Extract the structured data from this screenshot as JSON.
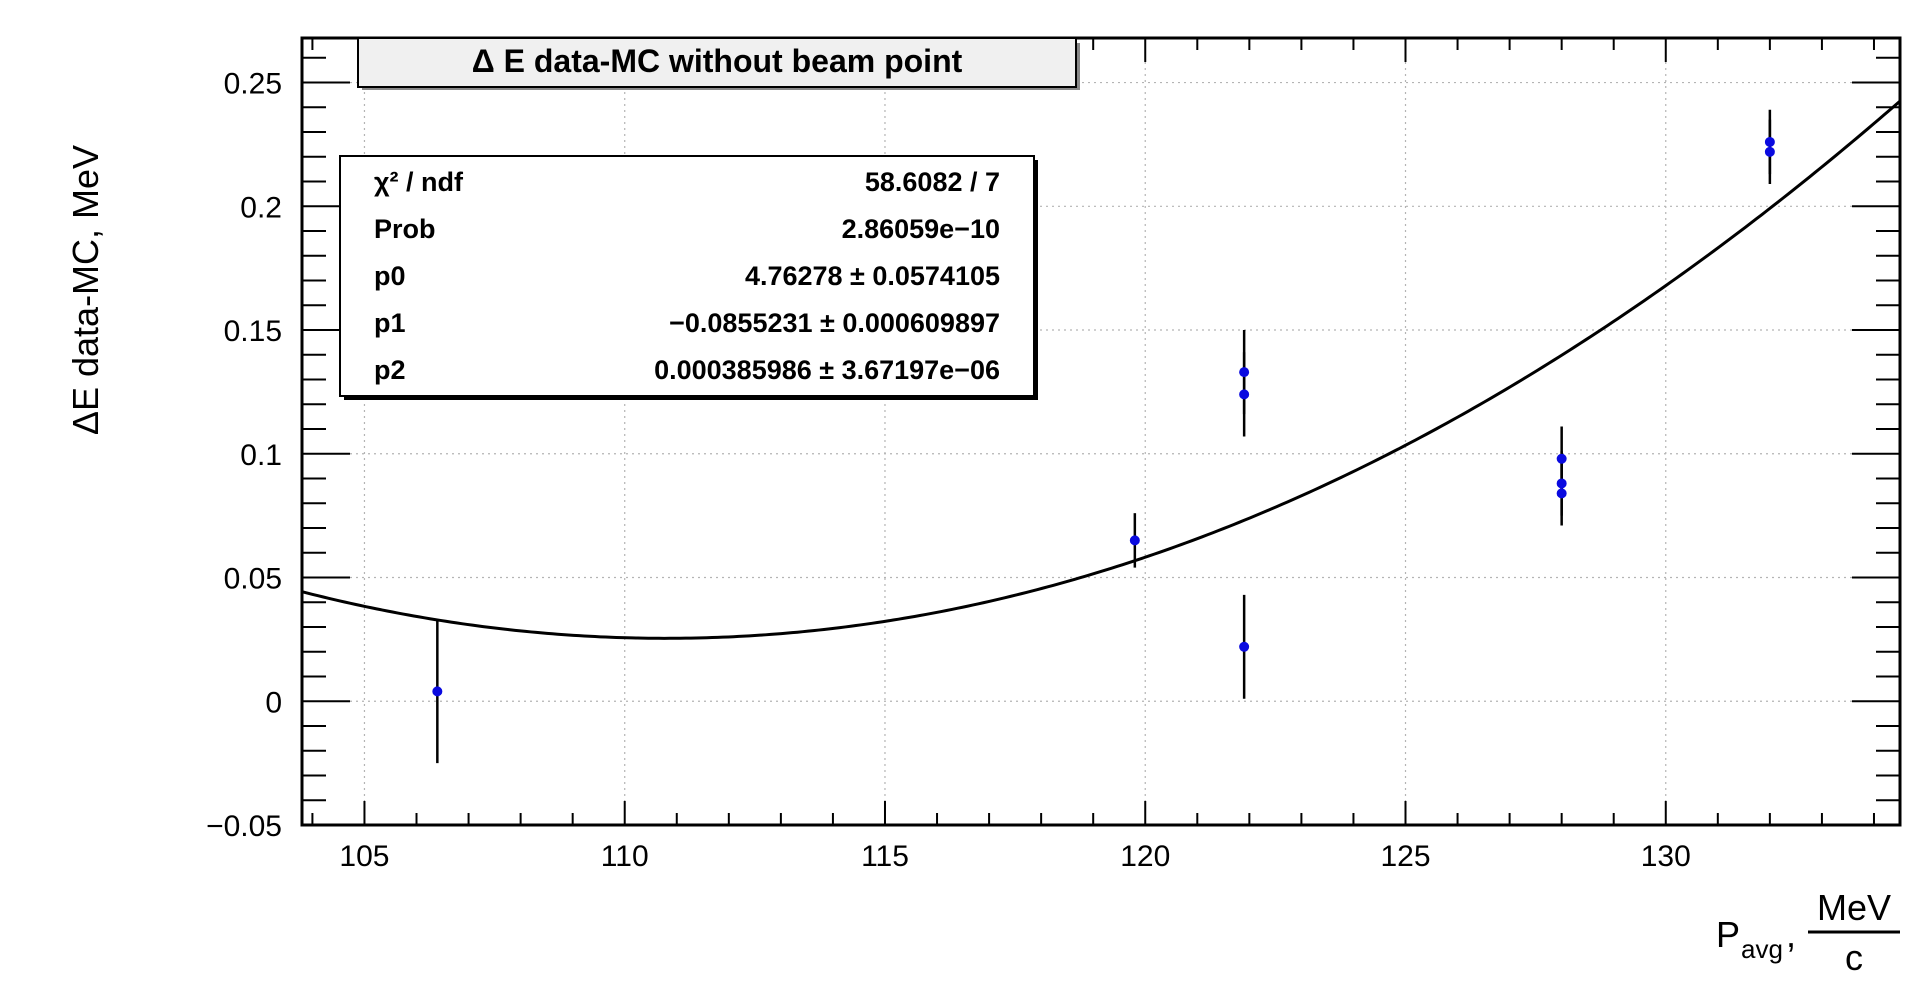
{
  "chart_data": {
    "type": "scatter",
    "title": "Δ E data-MC without beam point",
    "ylabel": "ΔE data-MC, MeV",
    "xlabel": {
      "main": "P",
      "subscript": "avg",
      "separator": ",",
      "unit_numerator": "MeV",
      "unit_denominator": "c"
    },
    "xlim": [
      103.8,
      134.5
    ],
    "ylim": [
      -0.05,
      0.268
    ],
    "grid": true,
    "x_ticks": [
      105,
      110,
      115,
      120,
      125,
      130
    ],
    "x_tick_labels": [
      "105",
      "110",
      "115",
      "120",
      "125",
      "130"
    ],
    "y_ticks": [
      -0.05,
      0,
      0.05,
      0.1,
      0.15,
      0.2,
      0.25
    ],
    "y_tick_labels": [
      "−0.05",
      "0",
      "0.05",
      "0.1",
      "0.15",
      "0.2",
      "0.25"
    ],
    "points": [
      {
        "x": 106.4,
        "y": 0.004,
        "err": 0.029
      },
      {
        "x": 119.8,
        "y": 0.065,
        "err": 0.011
      },
      {
        "x": 121.9,
        "y": 0.133,
        "err": 0.017
      },
      {
        "x": 121.9,
        "y": 0.124,
        "err": 0.017
      },
      {
        "x": 121.9,
        "y": 0.022,
        "err": 0.021
      },
      {
        "x": 128.0,
        "y": 0.098,
        "err": 0.013
      },
      {
        "x": 128.0,
        "y": 0.088,
        "err": 0.013
      },
      {
        "x": 128.0,
        "y": 0.084,
        "err": 0.013
      },
      {
        "x": 132.0,
        "y": 0.226,
        "err": 0.013
      },
      {
        "x": 132.0,
        "y": 0.222,
        "err": 0.013
      }
    ],
    "fit": {
      "p0": 4.76278,
      "p1": -0.0855231,
      "p2": 0.000385986
    },
    "stats_box": {
      "placement": "top-left",
      "rows": [
        {
          "label": "χ² / ndf",
          "value": "58.6082 / 7"
        },
        {
          "label": "Prob",
          "value": "2.86059e−10"
        },
        {
          "label": "p0",
          "value": "4.76278 ± 0.0574105"
        },
        {
          "label": "p1",
          "value": "−0.0855231 ± 0.000609897"
        },
        {
          "label": "p2",
          "value": "0.000385986 ± 3.67197e−06"
        }
      ]
    },
    "colors": {
      "marker": "#0a0ae0",
      "error_bar": "#000000",
      "fit_line": "#000000",
      "grid": "#b4b4b4",
      "title_box": "#f0f0f0"
    }
  }
}
